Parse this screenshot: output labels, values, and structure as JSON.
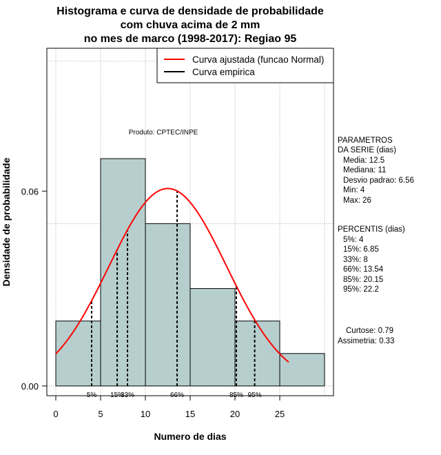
{
  "chart_data": {
    "type": "bar",
    "title_lines": [
      "Histograma e curva de densidade de probabilidade",
      "com chuva acima de 2 mm",
      "no mes de marco (1998-2017): Regiao 95"
    ],
    "xlabel": "Numero de dias",
    "ylabel": "Densidade de probabilidade",
    "xlim": [
      -1,
      31
    ],
    "ylim": [
      -0.003,
      0.104
    ],
    "x_ticks": [
      0,
      5,
      10,
      15,
      20,
      25
    ],
    "y_ticks": [
      {
        "value": 0.0,
        "label": "0.00"
      },
      {
        "value": 0.06,
        "label": "0.06"
      }
    ],
    "grid_x": [
      0,
      5,
      10,
      15,
      20,
      25,
      30
    ],
    "grid_y": [
      0.0,
      0.05,
      0.1
    ],
    "bins": [
      {
        "x0": 0,
        "x1": 5,
        "density": 0.02
      },
      {
        "x0": 5,
        "x1": 10,
        "density": 0.07
      },
      {
        "x0": 10,
        "x1": 15,
        "density": 0.05
      },
      {
        "x0": 15,
        "x1": 20,
        "density": 0.03
      },
      {
        "x0": 20,
        "x1": 25,
        "density": 0.02
      },
      {
        "x0": 25,
        "x1": 30,
        "density": 0.01
      }
    ],
    "normal_fit": {
      "name": "Curva ajustada (funcao Normal)",
      "mean": 12.5,
      "sd": 6.56,
      "x_from": 0,
      "x_to": 26,
      "color": "#ff0000"
    },
    "empirical_curve": {
      "name": "Curva empirica",
      "color": "#000000"
    },
    "bar_fill": "#b6cece",
    "percentile_lines": [
      {
        "label": "5%",
        "value": 4
      },
      {
        "label": "15%",
        "value": 6.85
      },
      {
        "label": "33%",
        "value": 8
      },
      {
        "label": "66%",
        "value": 13.54
      },
      {
        "label": "85%",
        "value": 20.15
      },
      {
        "label": "95%",
        "value": 22.2
      }
    ],
    "annotation": "Produto: CPTEC/INPE",
    "legend_position": "top-right"
  },
  "stats_panel": {
    "param_header": [
      "PARAMETROS",
      "DA SERIE (dias)"
    ],
    "params": [
      "Media: 12.5",
      "Mediana: 11",
      "Desvio padrao: 6.56",
      "Min: 4",
      "Max: 26"
    ],
    "percentil_header": "PERCENTIS (dias)",
    "percentis": [
      "5%: 4",
      "15%: 6.85",
      "33%: 8",
      "66%: 13.54",
      "85%: 20.15",
      "95%: 22.2"
    ],
    "shape": [
      "Curtose: 0.79",
      "Assimetria: 0.33"
    ]
  }
}
